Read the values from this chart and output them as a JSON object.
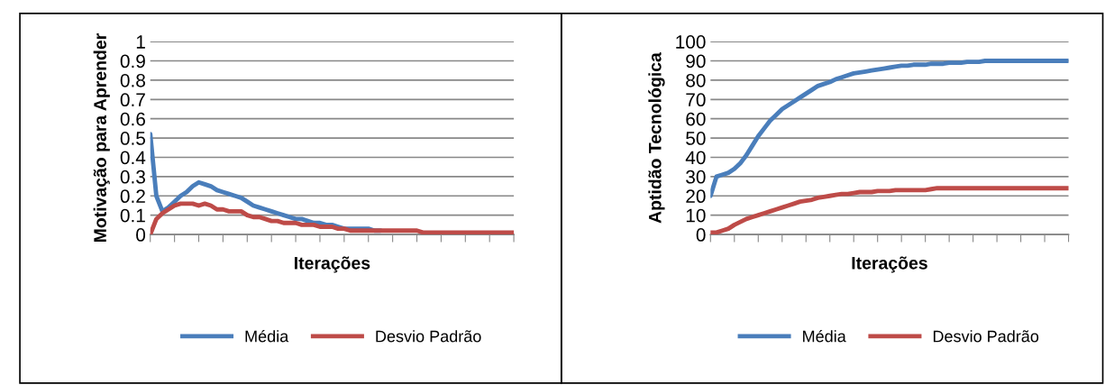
{
  "chart_data": [
    {
      "type": "line",
      "xlabel": "Iterações",
      "ylabel": "Motivação para Aprender",
      "categories": [
        null,
        null,
        null,
        null,
        null,
        null,
        null,
        null,
        null,
        null,
        null,
        null,
        null,
        null,
        null,
        null,
        null,
        null,
        null,
        null,
        null,
        null,
        null,
        null,
        null,
        null,
        null,
        null,
        null,
        null,
        null,
        null,
        null,
        null,
        null,
        null,
        null,
        null,
        null,
        null,
        null,
        null,
        null,
        null,
        null,
        null,
        null,
        null,
        null,
        null,
        null,
        null,
        null,
        null,
        null,
        null,
        null,
        null,
        null,
        null,
        null
      ],
      "ylim": [
        0,
        1
      ],
      "yticks": [
        0,
        0.1,
        0.2,
        0.3,
        0.4,
        0.5,
        0.6,
        0.7,
        0.8,
        0.9,
        1
      ],
      "grid": "y",
      "legend": "bottom",
      "marker": "none",
      "line_style": "solid",
      "series": [
        {
          "name": "Média",
          "color": "#4a7ebb",
          "values": [
            0.52,
            0.2,
            0.12,
            0.14,
            0.17,
            0.2,
            0.22,
            0.25,
            0.27,
            0.26,
            0.25,
            0.23,
            0.22,
            0.21,
            0.2,
            0.19,
            0.17,
            0.15,
            0.14,
            0.13,
            0.12,
            0.11,
            0.1,
            0.09,
            0.08,
            0.08,
            0.07,
            0.06,
            0.06,
            0.05,
            0.05,
            0.04,
            0.03,
            0.03,
            0.03,
            0.03,
            0.03,
            0.02,
            0.02,
            null,
            null,
            null,
            null,
            null,
            null,
            null,
            null,
            null,
            null,
            null,
            null,
            null,
            null,
            null,
            null,
            null,
            null,
            null,
            null,
            null,
            null
          ]
        },
        {
          "name": "Desvio Padrão",
          "color": "#be4b48",
          "values": [
            0,
            0.08,
            0.11,
            0.13,
            0.15,
            0.16,
            0.16,
            0.16,
            0.15,
            0.16,
            0.15,
            0.13,
            0.13,
            0.12,
            0.12,
            0.12,
            0.1,
            0.09,
            0.09,
            0.08,
            0.07,
            0.07,
            0.06,
            0.06,
            0.06,
            0.05,
            0.05,
            0.05,
            0.04,
            0.04,
            0.04,
            0.03,
            0.03,
            0.02,
            0.02,
            0.02,
            0.02,
            0.02,
            0.02,
            0.02,
            0.02,
            0.02,
            0.02,
            0.02,
            0.02,
            0.01,
            0.01,
            0.01,
            0.01,
            0.01,
            0.01,
            0.01,
            0.01,
            0.01,
            0.01,
            0.01,
            0.01,
            0.01,
            0.01,
            0.01,
            0.01
          ]
        }
      ]
    },
    {
      "type": "line",
      "xlabel": "Iterações",
      "ylabel": "Aptidão Tecnológica",
      "categories": [
        null,
        null,
        null,
        null,
        null,
        null,
        null,
        null,
        null,
        null,
        null,
        null,
        null,
        null,
        null,
        null,
        null,
        null,
        null,
        null,
        null,
        null,
        null,
        null,
        null,
        null,
        null,
        null,
        null,
        null,
        null,
        null,
        null,
        null,
        null,
        null,
        null,
        null,
        null,
        null,
        null,
        null,
        null,
        null,
        null,
        null,
        null,
        null,
        null,
        null,
        null,
        null,
        null,
        null,
        null,
        null,
        null,
        null,
        null,
        null,
        null
      ],
      "ylim": [
        0,
        100
      ],
      "yticks": [
        0,
        10,
        20,
        30,
        40,
        50,
        60,
        70,
        80,
        90,
        100
      ],
      "grid": "y",
      "legend": "bottom",
      "marker": "none",
      "line_style": "solid",
      "series": [
        {
          "name": "Média",
          "color": "#4a7ebb",
          "values": [
            20,
            30,
            31,
            32,
            34,
            37,
            41,
            46,
            51,
            55,
            59,
            62,
            65,
            67,
            69,
            71,
            73,
            75,
            77,
            78,
            79,
            80.5,
            81.5,
            82.5,
            83.5,
            84,
            84.5,
            85,
            85.5,
            86,
            86.5,
            87,
            87.5,
            87.5,
            88,
            88,
            88,
            88.5,
            88.5,
            88.5,
            89,
            89,
            89,
            89.5,
            89.5,
            89.5,
            90,
            90,
            90,
            90,
            90,
            90,
            90,
            90,
            90,
            90,
            90,
            90,
            90,
            90,
            90
          ]
        },
        {
          "name": "Desvio Padrão",
          "color": "#be4b48",
          "values": [
            1,
            1,
            2,
            3,
            5,
            6.5,
            8,
            9,
            10,
            11,
            12,
            13,
            14,
            15,
            16,
            17,
            17.5,
            18,
            19,
            19.5,
            20,
            20.5,
            21,
            21,
            21.5,
            22,
            22,
            22,
            22.5,
            22.5,
            22.5,
            23,
            23,
            23,
            23,
            23,
            23,
            23.5,
            24,
            24,
            24,
            24,
            24,
            24,
            24,
            24,
            24,
            24,
            24,
            24,
            24,
            24,
            24,
            24,
            24,
            24,
            24,
            24,
            24,
            24,
            24
          ]
        }
      ]
    }
  ]
}
